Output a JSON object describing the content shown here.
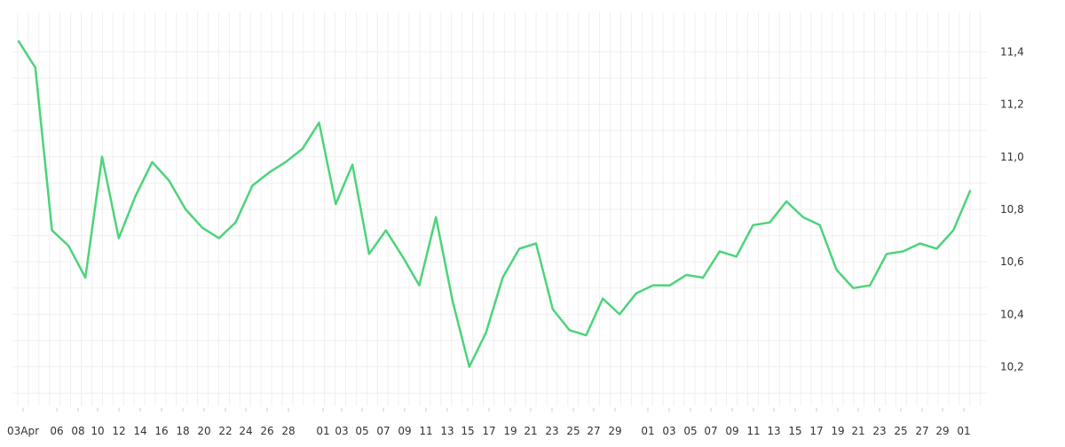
{
  "chart_data": {
    "type": "line",
    "title": "",
    "xlabel": "",
    "ylabel": "",
    "grid": true,
    "legend": "none",
    "ylim": [
      10.05,
      11.55
    ],
    "y_ticks": [
      "10,2",
      "10,4",
      "10,6",
      "10,8",
      "11,0",
      "11,2",
      "11,4"
    ],
    "x_tick_labels": [
      "03Apr",
      "06",
      "08",
      "10",
      "12",
      "14",
      "16",
      "18",
      "20",
      "22",
      "24",
      "26",
      "28",
      "01",
      "03",
      "05",
      "07",
      "09",
      "11",
      "13",
      "15",
      "17",
      "19",
      "21",
      "23",
      "25",
      "27",
      "29",
      "01",
      "03",
      "05",
      "07",
      "09",
      "11",
      "13",
      "15",
      "17",
      "19",
      "21",
      "23",
      "25",
      "27",
      "29",
      "01"
    ],
    "series": [
      {
        "color": "#4cd47a",
        "values": [
          11.44,
          11.34,
          10.72,
          10.66,
          10.54,
          11.0,
          10.69,
          10.85,
          10.98,
          10.91,
          10.8,
          10.73,
          10.69,
          10.75,
          10.89,
          10.94,
          10.98,
          11.03,
          11.13,
          10.82,
          10.97,
          10.63,
          10.72,
          10.62,
          10.51,
          10.77,
          10.45,
          10.2,
          10.33,
          10.54,
          10.65,
          10.67,
          10.42,
          10.34,
          10.32,
          10.46,
          10.4,
          10.48,
          10.51,
          10.51,
          10.55,
          10.54,
          10.64,
          10.62,
          10.74,
          10.75,
          10.83,
          10.77,
          10.74,
          10.57,
          10.5,
          10.51,
          10.63,
          10.64,
          10.67,
          10.65,
          10.72,
          10.87
        ]
      }
    ]
  }
}
